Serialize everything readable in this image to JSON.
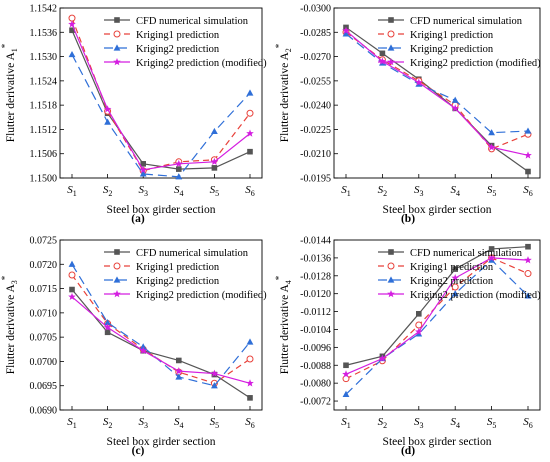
{
  "chart_data": [
    {
      "type": "line",
      "panel_label": "(a)",
      "ylabel": "Flutter derivative A",
      "ylabel_sub": "1",
      "xlabel": "Steel box girder section",
      "categories": [
        "S1",
        "S2",
        "S3",
        "S4",
        "S5",
        "S6"
      ],
      "yticks": [
        "1.1500",
        "1.1506",
        "1.1512",
        "1.1518",
        "1.1524",
        "1.1530",
        "1.1536",
        "1.1542"
      ],
      "ylim": [
        1.15,
        1.1542
      ],
      "grid": false,
      "legend_position": "top-right",
      "series": [
        {
          "name": "CFD numerical simulation",
          "values": [
            1.15365,
            1.1516,
            1.15035,
            1.15022,
            1.15025,
            1.15065
          ]
        },
        {
          "name": "Kriging1 prediction",
          "values": [
            1.15395,
            1.15165,
            1.15018,
            1.1504,
            1.15045,
            1.1516
          ]
        },
        {
          "name": "Kriging2 prediction",
          "values": [
            1.15305,
            1.15138,
            1.1501,
            1.15003,
            1.15115,
            1.1521
          ]
        },
        {
          "name": "Kriging2 prediction (modified)",
          "values": [
            1.1538,
            1.1517,
            1.1502,
            1.15035,
            1.1504,
            1.1511
          ]
        }
      ]
    },
    {
      "type": "line",
      "panel_label": "(b)",
      "ylabel": "Flutter derivative A",
      "ylabel_sub": "2",
      "xlabel": "Steel box girder section",
      "categories": [
        "S1",
        "S2",
        "S3",
        "S4",
        "S5",
        "S6"
      ],
      "yticks": [
        "-0.0300",
        "-0.0285",
        "-0.0270",
        "-0.0255",
        "-0.0240",
        "-0.0225",
        "-0.0210",
        "-0.0195"
      ],
      "ylim": [
        -0.0195,
        -0.03
      ],
      "grid": false,
      "legend_position": "top-right",
      "series": [
        {
          "name": "CFD numerical simulation",
          "values": [
            -0.0288,
            -0.0272,
            -0.0256,
            -0.0238,
            -0.0215,
            -0.0199
          ]
        },
        {
          "name": "Kriging1 prediction",
          "values": [
            -0.0285,
            -0.0268,
            -0.0255,
            -0.024,
            -0.0213,
            -0.0222
          ]
        },
        {
          "name": "Kriging2 prediction",
          "values": [
            -0.0284,
            -0.0266,
            -0.0253,
            -0.0243,
            -0.0223,
            -0.0224
          ]
        },
        {
          "name": "Kriging2 prediction (modified)",
          "values": [
            -0.0286,
            -0.0267,
            -0.0254,
            -0.0238,
            -0.0214,
            -0.0209
          ]
        }
      ]
    },
    {
      "type": "line",
      "panel_label": "(c)",
      "ylabel": "Flutter derivative A",
      "ylabel_sub": "3",
      "xlabel": "Steel box girder section",
      "categories": [
        "S1",
        "S2",
        "S3",
        "S4",
        "S5",
        "S6"
      ],
      "yticks": [
        "0.0690",
        "0.0695",
        "0.0700",
        "0.0705",
        "0.0710",
        "0.0715",
        "0.0720",
        "0.0725"
      ],
      "ylim": [
        0.069,
        0.0725
      ],
      "grid": false,
      "legend_position": "top-right",
      "series": [
        {
          "name": "CFD numerical simulation",
          "values": [
            0.07148,
            0.0706,
            0.07022,
            0.07002,
            0.06973,
            0.06925
          ]
        },
        {
          "name": "Kriging1 prediction",
          "values": [
            0.07178,
            0.07078,
            0.07025,
            0.06978,
            0.06955,
            0.07005
          ]
        },
        {
          "name": "Kriging2 prediction",
          "values": [
            0.072,
            0.0708,
            0.0703,
            0.06968,
            0.0695,
            0.0704
          ]
        },
        {
          "name": "Kriging2 prediction (modified)",
          "values": [
            0.07133,
            0.0707,
            0.07022,
            0.0698,
            0.06975,
            0.06955
          ]
        }
      ]
    },
    {
      "type": "line",
      "panel_label": "(d)",
      "ylabel": "Flutter derivative A",
      "ylabel_sub": "4",
      "xlabel": "Steel box girder section",
      "categories": [
        "S1",
        "S2",
        "S3",
        "S4",
        "S5",
        "S6"
      ],
      "yticks": [
        "-0.0072",
        "-0.0080",
        "-0.0088",
        "-0.0096",
        "-0.0104",
        "-0.0112",
        "-0.0120",
        "-0.0128",
        "-0.0136",
        "-0.0144"
      ],
      "ylim": [
        -0.0068,
        -0.0144
      ],
      "grid": false,
      "legend_position": "top-right",
      "series": [
        {
          "name": "CFD numerical simulation",
          "values": [
            -0.0088,
            -0.0092,
            -0.0111,
            -0.0131,
            -0.014,
            -0.0141
          ]
        },
        {
          "name": "Kriging1 prediction",
          "values": [
            -0.0082,
            -0.009,
            -0.0106,
            -0.0123,
            -0.0136,
            -0.0129
          ]
        },
        {
          "name": "Kriging2 prediction",
          "values": [
            -0.0075,
            -0.0091,
            -0.0102,
            -0.012,
            -0.0135,
            -0.0119
          ]
        },
        {
          "name": "Kriging2 prediction (modified)",
          "values": [
            -0.0084,
            -0.0091,
            -0.0103,
            -0.0127,
            -0.0136,
            -0.0135
          ]
        }
      ]
    }
  ],
  "series_styles": [
    {
      "color": "#555555",
      "dash": "",
      "marker": "square"
    },
    {
      "color": "#e8413a",
      "dash": "6,4",
      "marker": "circle-open"
    },
    {
      "color": "#2f6fd8",
      "dash": "9,5",
      "marker": "triangle"
    },
    {
      "color": "#d41ee0",
      "dash": "",
      "marker": "star"
    }
  ]
}
